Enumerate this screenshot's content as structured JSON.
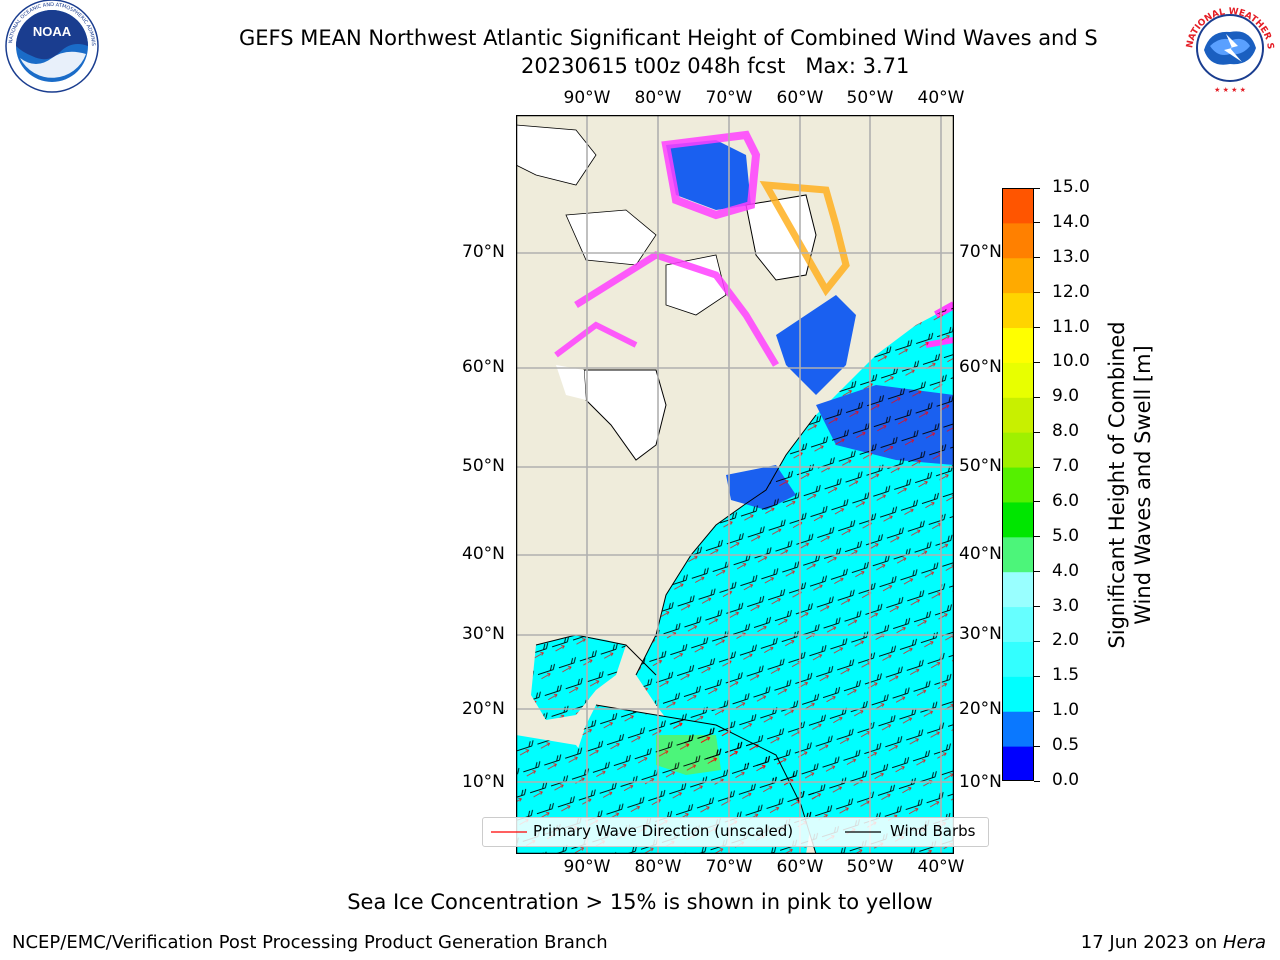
{
  "title": {
    "line1": "GEFS MEAN Northwest Atlantic Significant Height of Combined Wind Waves and S",
    "line2": "20230615 t00z 048h fcst   Max: 3.71"
  },
  "logos": {
    "left": {
      "name": "noaa-logo",
      "text": "NOAA",
      "ring_text": "NATIONAL OCEANIC AND ATMOSPHERIC ADMINISTRATION · U.S. DEPARTMENT OF COMMERCE"
    },
    "right": {
      "name": "nws-logo",
      "ring_text": "NATIONAL WEATHER SERVICE"
    }
  },
  "map": {
    "lon_labels": [
      "90°W",
      "80°W",
      "70°W",
      "60°W",
      "50°W",
      "40°W"
    ],
    "lat_labels": [
      "70°N",
      "60°N",
      "50°N",
      "40°N",
      "30°N",
      "20°N",
      "10°N"
    ],
    "colors": {
      "land": "#efecdb",
      "ocean_low": "#00ffff",
      "ocean_mid": "#1a60f0",
      "ice": "#ff40ff",
      "ice_edge": "#ffb020",
      "gridline": "#b0b0b0",
      "wave_dir": "#ff0000",
      "barb": "#000000"
    }
  },
  "colorbar": {
    "title_line1": "Significant Height of Combined",
    "title_line2": "Wind Waves and Swell [m]",
    "ticks": [
      "15.0",
      "14.0",
      "13.0",
      "12.0",
      "11.0",
      "10.0",
      "9.0",
      "8.0",
      "7.0",
      "6.0",
      "5.0",
      "4.0",
      "3.0",
      "2.0",
      "1.5",
      "1.0",
      "0.5",
      "0.0"
    ],
    "colors_bottom_to_top": [
      "#0000ff",
      "#0a78ff",
      "#00ffff",
      "#33ffff",
      "#66ffff",
      "#99ffff",
      "#4cf57a",
      "#00e600",
      "#55f000",
      "#a0f000",
      "#c8f000",
      "#e8ff00",
      "#ffff00",
      "#ffd400",
      "#ffaa00",
      "#ff8000",
      "#ff5500",
      "#ff2a00",
      "#ff0000"
    ]
  },
  "legend": {
    "wave_label": "Primary Wave Direction (unscaled)",
    "barb_label": "Wind Barbs"
  },
  "note": "Sea Ice Concentration > 15% is shown in pink to yellow",
  "footer": {
    "left": "NCEP/EMC/Verification Post Processing Product Generation Branch",
    "right_date": "17 Jun 2023 on ",
    "right_machine": "Hera"
  }
}
